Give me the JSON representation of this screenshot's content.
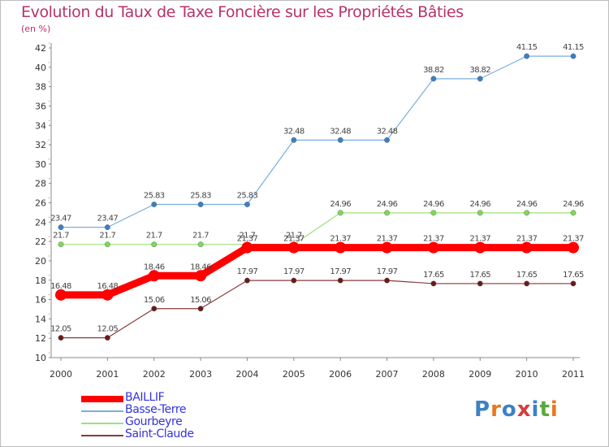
{
  "title": "Evolution du Taux de Taxe Foncière sur les Propriétés Bâties",
  "unit": "(en %)",
  "brand": {
    "letters": [
      "P",
      "r",
      "o",
      "x",
      "i",
      "t",
      "i"
    ],
    "colors": [
      "#3b82c4",
      "#e8781e",
      "#3b82c4",
      "#d63b3b",
      "#3b82c4",
      "#5aa83a",
      "#e8781e"
    ]
  },
  "chart_data": {
    "type": "line",
    "x": [
      "2000",
      "2001",
      "2002",
      "2003",
      "2004",
      "2005",
      "2006",
      "2007",
      "2008",
      "2009",
      "2010",
      "2011"
    ],
    "ylim": [
      10,
      42
    ],
    "yticks": [
      10,
      12,
      14,
      16,
      18,
      20,
      22,
      24,
      26,
      28,
      30,
      32,
      34,
      36,
      38,
      40,
      42
    ],
    "grid": false,
    "series": [
      {
        "name": "BAILLIF",
        "color": "#ff0000",
        "line_color": "#ff0000",
        "thick": true,
        "values": [
          16.48,
          16.48,
          18.46,
          18.46,
          21.37,
          21.37,
          21.37,
          21.37,
          21.37,
          21.37,
          21.37,
          21.37
        ],
        "labels": [
          "16.48",
          "16.48",
          "18.46",
          "18.46",
          "21.37",
          "21.37",
          "21.37",
          "21.37",
          "21.37",
          "21.37",
          "21.37",
          "21.37"
        ]
      },
      {
        "name": "Basse-Terre",
        "color": "#3b7fc4",
        "line_color": "#7aaee0",
        "thick": false,
        "values": [
          23.47,
          23.47,
          25.83,
          25.83,
          25.83,
          32.48,
          32.48,
          32.48,
          38.82,
          38.82,
          41.15,
          41.15
        ],
        "labels": [
          "23.47",
          "23.47",
          "25.83",
          "25.83",
          "25.83",
          "32.48",
          "32.48",
          "32.48",
          "38.82",
          "38.82",
          "41.15",
          "41.15"
        ]
      },
      {
        "name": "Gourbeyre",
        "color": "#7ed957",
        "line_color": "#9ee07e",
        "thick": false,
        "values": [
          21.7,
          21.7,
          21.7,
          21.7,
          21.7,
          21.7,
          24.96,
          24.96,
          24.96,
          24.96,
          24.96,
          24.96
        ],
        "labels": [
          "21.7",
          "21.7",
          "21.7",
          "21.7",
          "21.7",
          "21.7",
          "24.96",
          "24.96",
          "24.96",
          "24.96",
          "24.96",
          "24.96"
        ]
      },
      {
        "name": "Saint-Claude",
        "color": "#6b1a1a",
        "line_color": "#8a3a3a",
        "thick": false,
        "values": [
          12.05,
          12.05,
          15.06,
          15.06,
          17.97,
          17.97,
          17.97,
          17.97,
          17.65,
          17.65,
          17.65,
          17.65
        ],
        "labels": [
          "12.05",
          "12.05",
          "15.06",
          "15.06",
          "17.97",
          "17.97",
          "17.97",
          "17.97",
          "17.65",
          "17.65",
          "17.65",
          "17.65"
        ]
      }
    ]
  }
}
